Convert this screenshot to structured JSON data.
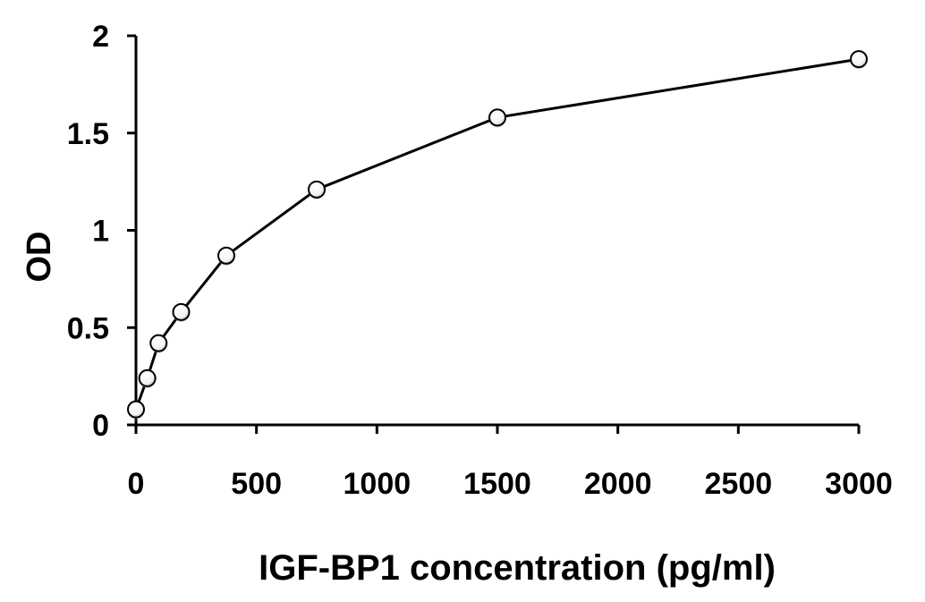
{
  "chart_data": {
    "type": "line",
    "title": "",
    "xlabel": "IGF-BP1 concentration (pg/ml)",
    "ylabel": "OD",
    "xlim": [
      0,
      3000
    ],
    "ylim": [
      0,
      2
    ],
    "x_ticks": [
      0,
      500,
      1000,
      1500,
      2000,
      2500,
      3000
    ],
    "x_tick_labels": [
      "0",
      "500",
      "1000",
      "1500",
      "2000",
      "2500",
      "3000"
    ],
    "y_ticks": [
      0,
      0.5,
      1,
      1.5,
      2
    ],
    "y_tick_labels": [
      "0",
      "0.5",
      "1",
      "1.5",
      "2"
    ],
    "grid": false,
    "legend": "none",
    "series": [
      {
        "x": [
          0,
          46.9,
          93.8,
          187.5,
          375,
          750,
          1500,
          3000
        ],
        "y": [
          0.08,
          0.24,
          0.42,
          0.58,
          0.87,
          1.21,
          1.58,
          1.88
        ],
        "line_color": "#000000",
        "marker": "open-circle",
        "marker_fill": "#ffffff"
      }
    ]
  }
}
